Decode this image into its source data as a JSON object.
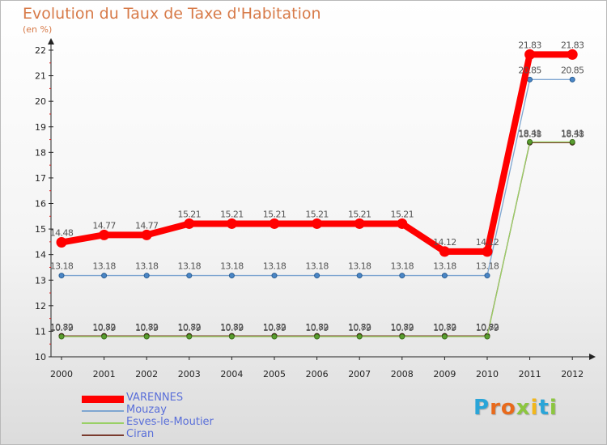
{
  "title": "Evolution du Taux de Taxe d'Habitation",
  "subtitle": "(en %)",
  "chart_data": {
    "type": "line",
    "title": "Evolution du Taux de Taxe d'Habitation",
    "ylabel": "(en %)",
    "xlabel": "",
    "ylim": [
      10,
      22
    ],
    "yticks": [
      10,
      11,
      12,
      13,
      14,
      15,
      16,
      17,
      18,
      19,
      20,
      21,
      22
    ],
    "grid": false,
    "legend": "bottom-left",
    "categories": [
      "2000",
      "2001",
      "2002",
      "2003",
      "2004",
      "2005",
      "2006",
      "2007",
      "2008",
      "2009",
      "2010",
      "2011",
      "2012"
    ],
    "series": [
      {
        "name": "VARENNES",
        "color": "#ff0000",
        "values": [
          14.48,
          14.77,
          14.77,
          15.21,
          15.21,
          15.21,
          15.21,
          15.21,
          15.21,
          14.12,
          14.12,
          21.83,
          21.83
        ],
        "labels": [
          "14.48",
          "14.77",
          "14.77",
          "15.21",
          "15.21",
          "15.21",
          "15.21",
          "15.21",
          "15.21",
          "14.12",
          "14.12",
          "21.83",
          "21.83"
        ]
      },
      {
        "name": "Mouzay",
        "color": "#7fa6d1",
        "values": [
          13.18,
          13.18,
          13.18,
          13.18,
          13.18,
          13.18,
          13.18,
          13.18,
          13.18,
          13.18,
          13.18,
          20.85,
          20.85
        ],
        "labels": [
          "13.18",
          "13.18",
          "13.18",
          "13.18",
          "13.18",
          "13.18",
          "13.18",
          "13.18",
          "13.18",
          "13.18",
          "13.18",
          "20.85",
          "20.85"
        ]
      },
      {
        "name": "Esves-le-Moutier",
        "color": "#99d066",
        "values": [
          10.79,
          10.79,
          10.79,
          10.79,
          10.79,
          10.79,
          10.79,
          10.79,
          10.79,
          10.79,
          10.79,
          18.41,
          18.41
        ],
        "labels": [
          "10.79",
          "10.79",
          "10.79",
          "10.79",
          "10.79",
          "10.79",
          "10.79",
          "10.79",
          "10.79",
          "10.79",
          "10.79",
          "18.41",
          "18.41"
        ]
      },
      {
        "name": "Ciran",
        "color": "#7a3b2e",
        "values": [
          10.82,
          10.82,
          10.82,
          10.82,
          10.82,
          10.82,
          10.82,
          10.82,
          10.82,
          10.82,
          10.82,
          18.38,
          18.38
        ],
        "labels": [
          "10.82",
          "10.82",
          "10.82",
          "10.82",
          "10.82",
          "10.82",
          "10.82",
          "10.82",
          "10.82",
          "10.82",
          "10.82",
          "18.38",
          "18.38"
        ]
      }
    ]
  },
  "logo": {
    "letters": [
      "P",
      "r",
      "o",
      "x",
      "i",
      "t",
      "i"
    ],
    "colors": [
      "#2aa5d8",
      "#e86a1c",
      "#e86a1c",
      "#8cc63f",
      "#f2b71b",
      "#2aa5d8",
      "#8cc63f"
    ]
  }
}
